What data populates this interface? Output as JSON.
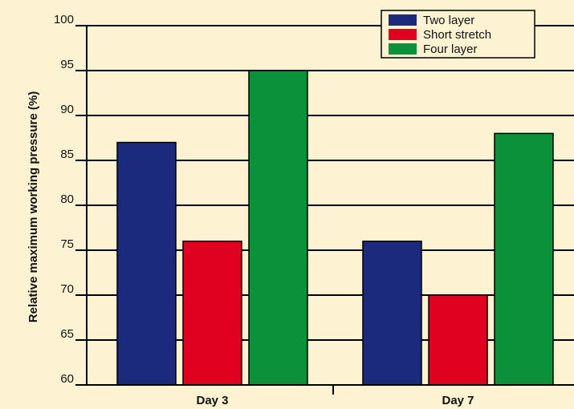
{
  "chart_data": {
    "type": "bar",
    "title": "",
    "xlabel": "",
    "ylabel": "Relative maximum working pressure (%)",
    "categories": [
      "Day 3",
      "Day 7"
    ],
    "series": [
      {
        "name": "Two layer",
        "color": "#1b2a7c",
        "values": [
          87,
          76
        ]
      },
      {
        "name": "Short stretch",
        "color": "#e0001f",
        "values": [
          76,
          70
        ]
      },
      {
        "name": "Four layer",
        "color": "#0a9139",
        "values": [
          95,
          88
        ]
      }
    ],
    "ylim": [
      60,
      100
    ],
    "yticks": [
      60,
      65,
      70,
      75,
      80,
      85,
      90,
      95,
      100
    ],
    "grid": true,
    "legend": "top-right"
  },
  "colors": {
    "background": "#fdf3d2",
    "gridline": "#000000"
  }
}
